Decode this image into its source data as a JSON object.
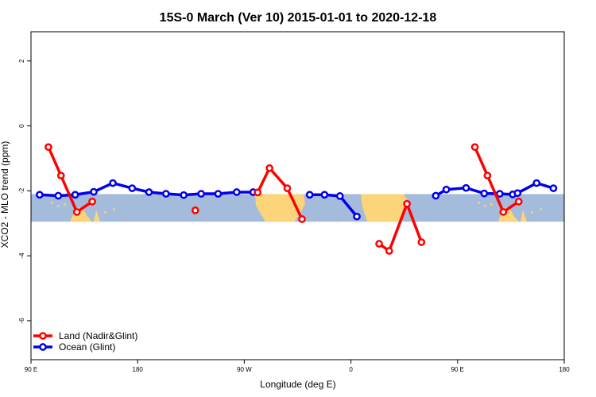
{
  "chart_data": {
    "type": "line",
    "title": "15S-0 March (Ver 10)   2015-01-01 to 2020-12-18",
    "xlabel": "Longitude (deg E)",
    "ylabel": "XCO2 - MLO trend (ppm)",
    "xlim": [
      90,
      540
    ],
    "ylim": [
      -7.2,
      2.9
    ],
    "x_ticks": [
      90,
      180,
      270,
      360,
      450,
      540
    ],
    "x_tick_labels": [
      "90 E",
      "180",
      "90 W",
      "0",
      "90 E",
      "180"
    ],
    "y_ticks": [
      2,
      0,
      -2,
      -4,
      -6
    ],
    "y_tick_labels": [
      "2",
      "0",
      "-2",
      "-4",
      "-6"
    ],
    "latitude_band": [
      -2.1,
      -2.95
    ],
    "colors": {
      "land": "#ff0000",
      "ocean": "#0000ee",
      "ocean_band": "#a5bbdc",
      "land_band": "#fcd57a"
    },
    "legend_position": "bottom-left",
    "series": [
      {
        "name": "Land (Nadir&Glint)",
        "color": "#ff0000",
        "segments": [
          [
            [
              104.7,
              -0.65
            ],
            [
              115.3,
              -1.53
            ],
            [
              128.7,
              -2.65
            ],
            [
              141.7,
              -2.33
            ]
          ],
          [
            [
              228.7,
              -2.6
            ]
          ],
          [
            [
              281.3,
              -2.05
            ],
            [
              291.3,
              -1.3
            ],
            [
              306.3,
              -1.92
            ],
            [
              318.7,
              -2.87
            ]
          ],
          [
            [
              383.8,
              -3.63
            ],
            [
              392.3,
              -3.85
            ],
            [
              407.3,
              -2.4
            ],
            [
              419.5,
              -3.58
            ]
          ],
          [
            [
              464.6,
              -0.65
            ],
            [
              475.2,
              -1.53
            ],
            [
              488.6,
              -2.65
            ],
            [
              501.6,
              -2.33
            ]
          ]
        ]
      },
      {
        "name": "Ocean (Glint)",
        "color": "#0000ee",
        "segments": [
          [
            [
              97.3,
              -2.12
            ],
            [
              113.0,
              -2.15
            ],
            [
              127.3,
              -2.12
            ],
            [
              143.0,
              -2.03
            ],
            [
              159.1,
              -1.76
            ],
            [
              175.4,
              -1.92
            ],
            [
              189.6,
              -2.04
            ],
            [
              203.9,
              -2.09
            ],
            [
              218.9,
              -2.13
            ],
            [
              233.6,
              -2.09
            ],
            [
              247.9,
              -2.09
            ],
            [
              263.6,
              -2.04
            ],
            [
              277.5,
              -2.04
            ]
          ],
          [
            [
              325.2,
              -2.12
            ],
            [
              337.7,
              -2.12
            ],
            [
              350.7,
              -2.16
            ],
            [
              365.0,
              -2.79
            ]
          ],
          [
            [
              431.6,
              -2.15
            ],
            [
              440.5,
              -1.96
            ],
            [
              457.2,
              -1.91
            ],
            [
              472.5,
              -2.08
            ],
            [
              485.6,
              -2.09
            ],
            [
              496.5,
              -2.11
            ],
            [
              500.6,
              -2.07
            ],
            [
              516.7,
              -1.76
            ],
            [
              530.9,
              -1.92
            ]
          ]
        ]
      }
    ]
  }
}
